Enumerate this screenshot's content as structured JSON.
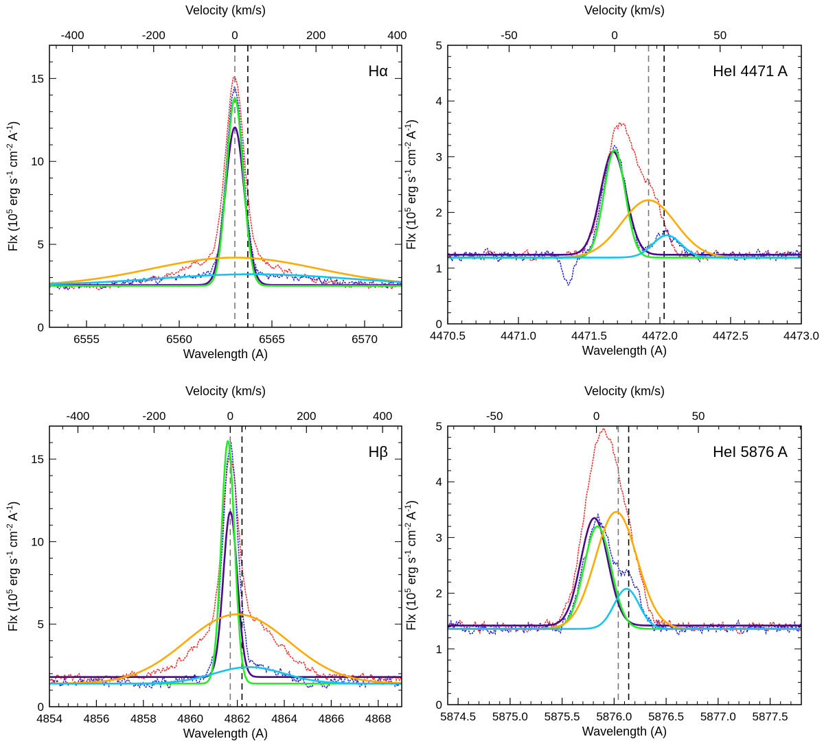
{
  "figure": {
    "colors": {
      "red": "#ff2a2a",
      "blue": "#2525d8",
      "purple": "#4b0a8c",
      "green": "#22ee22",
      "orange": "#ffaa00",
      "cyan": "#11c5f0",
      "axis": "#000000"
    }
  },
  "chart_data": [
    {
      "type": "line",
      "label": "Hα",
      "xlabel": "Wavelength (A)",
      "ylabel": "Flx (10^5 erg s^-1 cm^-2 A^-1)",
      "ylabel_parts": [
        "Flx (10",
        "5",
        " erg s",
        "-1",
        " cm",
        "-2",
        " A",
        "-1",
        ")"
      ],
      "top_label": "Velocity (km/s)",
      "xlim": [
        6553,
        6572
      ],
      "ylim": [
        0,
        17
      ],
      "xticks": [
        6555,
        6560,
        6565,
        6570
      ],
      "yticks": [
        0,
        5,
        10,
        15
      ],
      "top_center": 6563.0,
      "top_xticks": [
        -400,
        -200,
        0,
        200,
        400
      ],
      "vlines": [
        6563.0,
        6563.7
      ],
      "series": [
        {
          "name": "purple fit",
          "color": "purple",
          "baseline": 2.55,
          "peaks": [
            {
              "center": 6563.0,
              "amplitude": 9.5,
              "sigma": 0.5
            }
          ]
        },
        {
          "name": "green fit",
          "color": "green",
          "baseline": 2.5,
          "peaks": [
            {
              "center": 6563.0,
              "amplitude": 11.3,
              "sigma": 0.45
            }
          ]
        },
        {
          "name": "orange broad",
          "color": "orange",
          "baseline": 2.5,
          "peaks": [
            {
              "center": 6563.0,
              "amplitude": 1.7,
              "sigma": 4.5
            }
          ]
        },
        {
          "name": "cyan broad",
          "color": "cyan",
          "baseline": 2.55,
          "peaks": [
            {
              "center": 6564.0,
              "amplitude": 0.65,
              "sigma": 5.0
            }
          ]
        }
      ],
      "observed": [
        {
          "name": "red dotted",
          "color": "red",
          "baseline": 2.5,
          "noise": 0.15,
          "peaks": [
            {
              "center": 6563.0,
              "amplitude": 10.8,
              "sigma": 0.48
            },
            {
              "center": 6562.9,
              "amplitude": 1.8,
              "sigma": 2.5
            }
          ]
        },
        {
          "name": "blue dotted",
          "color": "blue",
          "baseline": 2.45,
          "noise": 0.18,
          "peaks": [
            {
              "center": 6563.0,
              "amplitude": 11.3,
              "sigma": 0.45
            },
            {
              "center": 6563.3,
              "amplitude": 0.7,
              "sigma": 4.0
            }
          ]
        }
      ]
    },
    {
      "type": "line",
      "label": "HeI 4471 A",
      "xlabel": "Wavelength (A)",
      "ylabel": "Flx (10^5 erg s^-1 cm^-2 A^-1)",
      "ylabel_parts": [
        "Flx (10",
        "5",
        " erg s",
        "-1",
        " cm",
        "-2",
        " A",
        "-1",
        ")"
      ],
      "top_label": "Velocity (km/s)",
      "xlim": [
        4470.5,
        4473.0
      ],
      "ylim": [
        0,
        5
      ],
      "xticks": [
        4470.5,
        4471.0,
        4471.5,
        4472.0,
        4472.5,
        4473.0
      ],
      "xtick_labels": [
        "4470.5",
        "4471.0",
        "4471.5",
        "4472.0",
        "4472.5",
        "4473.0"
      ],
      "yticks": [
        0,
        1,
        2,
        3,
        4,
        5
      ],
      "top_center": 4471.68,
      "top_xticks": [
        -50,
        0,
        50
      ],
      "vlines": [
        4471.92,
        4472.03
      ],
      "series": [
        {
          "name": "purple fit",
          "color": "purple",
          "baseline": 1.24,
          "peaks": [
            {
              "center": 4471.67,
              "amplitude": 1.85,
              "sigma": 0.09
            }
          ]
        },
        {
          "name": "green fit",
          "color": "green",
          "baseline": 1.19,
          "peaks": [
            {
              "center": 4471.68,
              "amplitude": 1.93,
              "sigma": 0.075
            }
          ]
        },
        {
          "name": "orange broad",
          "color": "orange",
          "baseline": 1.19,
          "peaks": [
            {
              "center": 4471.92,
              "amplitude": 1.03,
              "sigma": 0.19
            }
          ]
        },
        {
          "name": "cyan broad",
          "color": "cyan",
          "baseline": 1.19,
          "peaks": [
            {
              "center": 4472.05,
              "amplitude": 0.4,
              "sigma": 0.1
            }
          ]
        }
      ],
      "observed": [
        {
          "name": "red dotted",
          "color": "red",
          "baseline": 1.22,
          "noise": 0.06,
          "peaks": [
            {
              "center": 4471.72,
              "amplitude": 2.35,
              "sigma": 0.11
            },
            {
              "center": 4471.95,
              "amplitude": 0.9,
              "sigma": 0.08
            }
          ]
        },
        {
          "name": "blue dotted",
          "color": "blue",
          "baseline": 1.22,
          "noise": 0.07,
          "peaks": [
            {
              "center": 4471.68,
              "amplitude": 1.9,
              "sigma": 0.08
            },
            {
              "center": 4472.04,
              "amplitude": 0.4,
              "sigma": 0.08
            },
            {
              "center": 4471.35,
              "amplitude": -0.55,
              "sigma": 0.035
            }
          ]
        }
      ]
    },
    {
      "type": "line",
      "label": "Hβ",
      "xlabel": "Wavelength (A)",
      "ylabel": "Flx (10^5 erg s^-1 cm^-2 A^-1)",
      "ylabel_parts": [
        "Flx (10",
        "5",
        " erg s",
        "-1",
        " cm",
        "-2",
        " A",
        "-1",
        ")"
      ],
      "top_label": "Velocity (km/s)",
      "xlim": [
        4854,
        4869
      ],
      "ylim": [
        0,
        17
      ],
      "xticks": [
        4854,
        4856,
        4858,
        4860,
        4862,
        4864,
        4866,
        4868
      ],
      "yticks": [
        0,
        5,
        10,
        15
      ],
      "top_center": 4861.7,
      "top_xticks": [
        -400,
        -200,
        0,
        200,
        400
      ],
      "vlines": [
        4861.7,
        4862.2
      ],
      "series": [
        {
          "name": "purple fit",
          "color": "purple",
          "baseline": 1.8,
          "peaks": [
            {
              "center": 4861.7,
              "amplitude": 10.0,
              "sigma": 0.3
            }
          ]
        },
        {
          "name": "green fit",
          "color": "green",
          "baseline": 1.4,
          "peaks": [
            {
              "center": 4861.6,
              "amplitude": 14.7,
              "sigma": 0.28
            }
          ]
        },
        {
          "name": "orange broad",
          "color": "orange",
          "baseline": 1.4,
          "peaks": [
            {
              "center": 4862.0,
              "amplitude": 4.2,
              "sigma": 2.2
            }
          ]
        },
        {
          "name": "cyan broad",
          "color": "cyan",
          "baseline": 1.4,
          "peaks": [
            {
              "center": 4862.5,
              "amplitude": 1.0,
              "sigma": 1.5
            }
          ]
        }
      ],
      "observed": [
        {
          "name": "red dotted",
          "color": "red",
          "baseline": 1.75,
          "noise": 0.2,
          "peaks": [
            {
              "center": 4861.7,
              "amplitude": 9.5,
              "sigma": 0.32
            },
            {
              "center": 4862.0,
              "amplitude": 4.0,
              "sigma": 1.5
            }
          ]
        },
        {
          "name": "blue dotted",
          "color": "blue",
          "baseline": 1.5,
          "noise": 0.25,
          "peaks": [
            {
              "center": 4861.7,
              "amplitude": 13.5,
              "sigma": 0.32
            },
            {
              "center": 4862.4,
              "amplitude": 1.0,
              "sigma": 1.2
            }
          ]
        }
      ]
    },
    {
      "type": "line",
      "label": "HeI 5876 A",
      "xlabel": "Wavelength (A)",
      "ylabel": "Flx (10^5 erg s^-1 cm^-2 A^-1)",
      "ylabel_parts": [
        "Flx (10",
        "5",
        " erg s",
        "-1",
        " cm",
        "-2",
        " A",
        "-1",
        ")"
      ],
      "top_label": "Velocity (km/s)",
      "xlim": [
        5874.4,
        5877.8
      ],
      "ylim": [
        0,
        5
      ],
      "xticks": [
        5874.5,
        5875.0,
        5875.5,
        5876.0,
        5876.5,
        5877.0,
        5877.5
      ],
      "xtick_labels": [
        "5874.5",
        "5875.0",
        "5875.5",
        "5876.0",
        "5876.5",
        "5877.0",
        "5877.5"
      ],
      "yticks": [
        0,
        1,
        2,
        3,
        4,
        5
      ],
      "top_center": 5875.83,
      "top_xticks": [
        -50,
        0,
        50
      ],
      "vlines": [
        5876.04,
        5876.14
      ],
      "series": [
        {
          "name": "purple fit",
          "color": "purple",
          "baseline": 1.42,
          "peaks": [
            {
              "center": 5875.81,
              "amplitude": 1.93,
              "sigma": 0.13
            }
          ]
        },
        {
          "name": "green fit",
          "color": "green",
          "baseline": 1.36,
          "peaks": [
            {
              "center": 5875.84,
              "amplitude": 1.84,
              "sigma": 0.13
            }
          ]
        },
        {
          "name": "orange broad",
          "color": "orange",
          "baseline": 1.36,
          "peaks": [
            {
              "center": 5876.02,
              "amplitude": 2.1,
              "sigma": 0.2
            }
          ]
        },
        {
          "name": "cyan broad",
          "color": "cyan",
          "baseline": 1.36,
          "peaks": [
            {
              "center": 5876.12,
              "amplitude": 0.72,
              "sigma": 0.12
            }
          ]
        }
      ],
      "observed": [
        {
          "name": "red dotted",
          "color": "red",
          "baseline": 1.4,
          "noise": 0.07,
          "peaks": [
            {
              "center": 5875.88,
              "amplitude": 3.45,
              "sigma": 0.16
            },
            {
              "center": 5876.15,
              "amplitude": 1.0,
              "sigma": 0.12
            }
          ]
        },
        {
          "name": "blue dotted",
          "color": "blue",
          "baseline": 1.38,
          "noise": 0.08,
          "peaks": [
            {
              "center": 5875.84,
              "amplitude": 1.95,
              "sigma": 0.13
            },
            {
              "center": 5876.15,
              "amplitude": 0.8,
              "sigma": 0.1
            }
          ]
        }
      ]
    }
  ]
}
